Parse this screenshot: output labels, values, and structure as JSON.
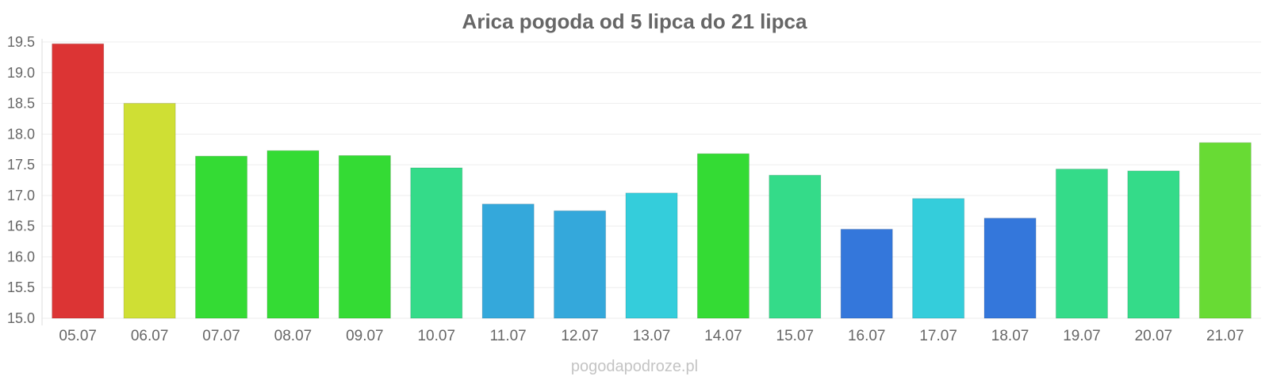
{
  "chart_data": {
    "type": "bar",
    "title": "Arica pogoda od 5 lipca do 21 lipca",
    "xlabel": "",
    "ylabel": "",
    "ylim": [
      15.0,
      19.5
    ],
    "yticks": [
      "15.0",
      "15.5",
      "16.0",
      "16.5",
      "17.0",
      "17.5",
      "18.0",
      "18.5",
      "19.0",
      "19.5"
    ],
    "grid": true,
    "legend": "none",
    "categories": [
      "05.07",
      "06.07",
      "07.07",
      "08.07",
      "09.07",
      "10.07",
      "11.07",
      "12.07",
      "13.07",
      "14.07",
      "15.07",
      "16.07",
      "17.07",
      "18.07",
      "19.07",
      "20.07",
      "21.07"
    ],
    "values": [
      19.47,
      18.5,
      17.64,
      17.73,
      17.65,
      17.45,
      16.86,
      16.75,
      17.04,
      17.68,
      17.33,
      16.45,
      16.95,
      16.63,
      17.43,
      17.4,
      17.86
    ],
    "colors": [
      "#dc3434",
      "#cfdf34",
      "#34db34",
      "#34db34",
      "#34db34",
      "#34db89",
      "#34a8db",
      "#34a8db",
      "#34cddb",
      "#34db34",
      "#34db89",
      "#3477db",
      "#34cddb",
      "#3477db",
      "#34db89",
      "#34db89",
      "#68db34"
    ]
  },
  "watermark": "pogodapodroze.pl"
}
